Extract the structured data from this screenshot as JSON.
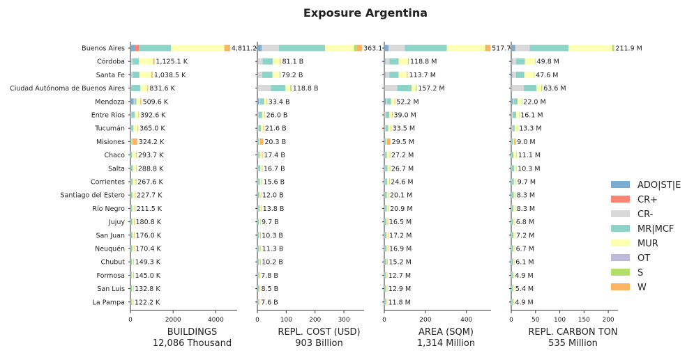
{
  "title": "Exposure Argentina",
  "legend": [
    {
      "key": "ADO|ST|E",
      "color": "#7bacd2"
    },
    {
      "key": "CR+",
      "color": "#fb8572"
    },
    {
      "key": "CR-",
      "color": "#d9d9d9"
    },
    {
      "key": "MR|MCF",
      "color": "#8dd3c7"
    },
    {
      "key": "MUR",
      "color": "#fdffb3"
    },
    {
      "key": "OT",
      "color": "#bebada"
    },
    {
      "key": "S",
      "color": "#b3de69"
    },
    {
      "key": "W",
      "color": "#fdb462"
    }
  ],
  "chart_data": {
    "type": "bar",
    "orientation": "horizontal-stacked",
    "categories": [
      "Buenos Aires",
      "Córdoba",
      "Santa Fe",
      "Ciudad Autónoma de Buenos Aires",
      "Mendoza",
      "Entre Ríos",
      "Tucumán",
      "Misiones",
      "Chaco",
      "Salta",
      "Corrientes",
      "Santiago del Estero",
      "Río Negro",
      "Jujuy",
      "San Juan",
      "Neuquén",
      "Chubut",
      "Formosa",
      "San Luis",
      "La Pampa"
    ],
    "panels": [
      {
        "xlabel": "BUILDINGS",
        "total": "12,086 Thousand",
        "xlim": [
          0,
          5000
        ],
        "ticks": [
          0,
          2000,
          4000
        ],
        "labels": [
          "4,811.2 K",
          "1,125.1 K",
          "1,038.5 K",
          "831.6 K",
          "509.6 K",
          "392.6 K",
          "365.0 K",
          "324.2 K",
          "293.7 K",
          "288.8 K",
          "267.6 K",
          "227.7 K",
          "211.5 K",
          "180.8 K",
          "176.0 K",
          "170.4 K",
          "149.3 K",
          "145.0 K",
          "132.8 K",
          "122.2 K"
        ],
        "stacks": [
          [
            200,
            200,
            0,
            1500,
            2500,
            0,
            0,
            270
          ],
          [
            40,
            0,
            60,
            300,
            660,
            0,
            20,
            45
          ],
          [
            40,
            0,
            60,
            320,
            560,
            0,
            20,
            40
          ],
          [
            30,
            0,
            20,
            410,
            330,
            0,
            20,
            20
          ],
          [
            150,
            0,
            50,
            80,
            180,
            0,
            20,
            30
          ],
          [
            20,
            0,
            30,
            150,
            170,
            0,
            10,
            15
          ],
          [
            20,
            0,
            30,
            90,
            200,
            0,
            10,
            15
          ],
          [
            10,
            0,
            10,
            30,
            30,
            0,
            10,
            230
          ],
          [
            10,
            0,
            20,
            40,
            200,
            0,
            10,
            15
          ],
          [
            10,
            0,
            20,
            80,
            160,
            0,
            10,
            10
          ],
          [
            10,
            0,
            20,
            70,
            150,
            0,
            10,
            10
          ],
          [
            10,
            0,
            10,
            70,
            120,
            0,
            10,
            10
          ],
          [
            10,
            0,
            20,
            50,
            120,
            0,
            5,
            10
          ],
          [
            10,
            0,
            20,
            60,
            80,
            0,
            5,
            5
          ],
          [
            10,
            0,
            10,
            70,
            80,
            0,
            5,
            5
          ],
          [
            10,
            0,
            20,
            60,
            70,
            0,
            5,
            5
          ],
          [
            10,
            0,
            10,
            50,
            70,
            0,
            5,
            5
          ],
          [
            10,
            0,
            10,
            40,
            80,
            0,
            5,
            5
          ],
          [
            10,
            0,
            10,
            50,
            55,
            0,
            5,
            5
          ],
          [
            10,
            0,
            10,
            40,
            55,
            0,
            5,
            5
          ]
        ]
      },
      {
        "xlabel": "REPL. COST (USD)",
        "total": "903 Billion",
        "xlim": [
          0,
          370
        ],
        "ticks": [
          0,
          100,
          200,
          300
        ],
        "labels": [
          "363.1 B",
          "81.1 B",
          "79.2 B",
          "118.8 B",
          "33.4 B",
          "26.0 B",
          "21.6 B",
          "20.3 B",
          "17.4 B",
          "16.7 B",
          "15.6 B",
          "12.0 B",
          "13.8 B",
          "9.7 B",
          "10.3 B",
          "11.3 B",
          "10.2 B",
          "7.8 B",
          "8.5 B",
          "7.6 B"
        ],
        "stacks": [
          [
            15,
            0,
            60,
            160,
            100,
            0,
            10,
            18
          ],
          [
            3,
            0,
            15,
            35,
            25,
            0,
            1,
            2
          ],
          [
            3,
            0,
            14,
            35,
            25,
            0,
            1,
            1
          ],
          [
            2,
            0,
            45,
            50,
            17,
            0,
            3,
            1
          ],
          [
            5,
            0,
            3,
            15,
            9,
            0,
            1,
            0.4
          ],
          [
            1,
            0,
            3,
            12,
            9,
            0,
            0.5,
            0.5
          ],
          [
            1,
            0,
            3,
            8,
            9,
            0,
            0.3,
            0.3
          ],
          [
            1,
            0,
            1,
            3,
            3,
            0,
            0.3,
            12
          ],
          [
            1,
            0,
            2,
            5,
            8,
            0,
            1,
            0.4
          ],
          [
            1,
            0,
            2,
            7,
            6,
            0,
            0.4,
            0.3
          ],
          [
            1,
            0,
            2,
            6,
            6,
            0,
            0.3,
            0.3
          ],
          [
            1,
            0,
            1,
            5,
            4.5,
            0,
            0.3,
            0.2
          ],
          [
            1,
            0,
            2,
            5,
            5.3,
            0,
            0.3,
            0.2
          ],
          [
            0.5,
            0,
            1,
            4,
            4,
            0,
            0.1,
            0.1
          ],
          [
            0.5,
            0,
            1,
            5,
            3.5,
            0,
            0.2,
            0.1
          ],
          [
            0.5,
            0,
            1.5,
            5,
            4,
            0,
            0.2,
            0.1
          ],
          [
            0.5,
            0,
            1,
            5,
            3.5,
            0,
            0.1,
            0.1
          ],
          [
            0.5,
            0,
            1,
            3,
            3,
            0,
            0.2,
            0.1
          ],
          [
            0.5,
            0,
            1,
            3.5,
            3.3,
            0,
            0.1,
            0.1
          ],
          [
            0.5,
            0,
            1,
            3,
            3,
            0,
            0,
            0.1
          ]
        ]
      },
      {
        "xlabel": "AREA (SQM)",
        "total": "1,314 Million",
        "xlim": [
          0,
          520
        ],
        "ticks": [
          0,
          200,
          400
        ],
        "labels": [
          "517.7 M",
          "118.8 M",
          "113.7 M",
          "157.2 M",
          "52.2 M",
          "39.0 M",
          "33.5 M",
          "29.5 M",
          "27.2 M",
          "26.7 M",
          "24.6 M",
          "20.1 M",
          "20.9 M",
          "16.5 M",
          "17.2 M",
          "16.9 M",
          "15.2 M",
          "12.7 M",
          "12.9 M",
          "11.8 M"
        ],
        "stacks": [
          [
            20,
            0,
            80,
            205,
            185,
            0,
            5,
            22
          ],
          [
            5,
            0,
            20,
            45,
            45,
            0,
            2,
            2
          ],
          [
            5,
            0,
            20,
            45,
            40,
            0,
            2,
            2
          ],
          [
            3,
            0,
            60,
            70,
            20,
            0,
            3,
            1
          ],
          [
            8,
            0,
            5,
            20,
            17,
            0,
            1,
            1
          ],
          [
            2,
            0,
            5,
            18,
            13,
            0,
            0.5,
            0.5
          ],
          [
            2,
            0,
            5,
            12,
            13,
            0,
            0.5,
            0.5
          ],
          [
            1,
            0,
            2,
            5,
            4,
            0,
            0.5,
            17
          ],
          [
            1,
            0,
            3,
            8,
            14,
            0,
            0.5,
            0.5
          ],
          [
            1,
            0,
            3,
            12,
            10,
            0,
            0.4,
            0.3
          ],
          [
            1,
            0,
            3,
            10,
            10,
            0,
            0.3,
            0.3
          ],
          [
            1,
            0,
            2,
            9,
            7.5,
            0,
            0.3,
            0.3
          ],
          [
            1,
            0,
            3,
            8,
            8.5,
            0,
            0.2,
            0.2
          ],
          [
            1,
            0,
            2,
            7,
            6,
            0,
            0.3,
            0.2
          ],
          [
            1,
            0,
            2,
            8,
            6,
            0,
            0.1,
            0.1
          ],
          [
            1,
            0,
            2,
            8,
            5.5,
            0,
            0.2,
            0.2
          ],
          [
            1,
            0,
            2,
            7,
            5,
            0,
            0.1,
            0.1
          ],
          [
            0.5,
            0,
            1.5,
            5,
            5.5,
            0,
            0.1,
            0.1
          ],
          [
            0.5,
            0,
            1.5,
            5.5,
            5.2,
            0,
            0.1,
            0.1
          ],
          [
            0.5,
            0,
            1.5,
            5,
            4.6,
            0,
            0.1,
            0.1
          ]
        ]
      },
      {
        "xlabel": "REPL. CARBON TON",
        "total": "535 Million",
        "xlim": [
          0,
          220
        ],
        "ticks": [
          0,
          50,
          100,
          150,
          200
        ],
        "labels": [
          "211.9 M",
          "49.8 M",
          "47.6 M",
          "63.6 M",
          "22.0 M",
          "16.1 M",
          "13.3 M",
          "9.0 M",
          "11.1 M",
          "10.3 M",
          "9.7 M",
          "8.3 M",
          "8.3 M",
          "6.8 M",
          "7.2 M",
          "6.7 M",
          "6.1 M",
          "4.9 M",
          "5.4 M",
          "4.9 M"
        ],
        "stacks": [
          [
            8,
            0,
            30,
            80,
            90,
            0,
            4,
            0
          ],
          [
            2,
            0,
            8,
            18,
            21,
            0,
            0.8,
            0
          ],
          [
            2,
            0,
            8,
            17,
            20,
            0,
            0.6,
            0
          ],
          [
            1,
            0,
            25,
            26,
            10,
            0,
            1.6,
            0
          ],
          [
            3,
            0,
            2,
            8,
            8.5,
            0,
            0.5,
            0
          ],
          [
            1,
            0,
            2,
            7,
            6,
            0,
            0.1,
            0
          ],
          [
            1,
            0,
            2,
            4,
            6,
            0,
            0.3,
            0
          ],
          [
            0.5,
            0,
            1,
            2,
            2,
            0,
            0.5,
            3
          ],
          [
            0.5,
            0,
            1,
            3,
            6,
            0,
            0.6,
            0
          ],
          [
            0.5,
            0,
            1,
            4.5,
            4,
            0,
            0.3,
            0
          ],
          [
            0.5,
            0,
            1,
            4,
            4,
            0,
            0.2,
            0
          ],
          [
            0.5,
            0,
            1,
            3.5,
            3.2,
            0,
            0.1,
            0
          ],
          [
            0.5,
            0,
            1,
            3.2,
            3.5,
            0,
            0.1,
            0
          ],
          [
            0.4,
            0,
            0.8,
            2.8,
            2.7,
            0,
            0.1,
            0
          ],
          [
            0.4,
            0,
            0.8,
            3.2,
            2.7,
            0,
            0.1,
            0
          ],
          [
            0.4,
            0,
            0.8,
            3,
            2.4,
            0,
            0.1,
            0
          ],
          [
            0.4,
            0,
            0.7,
            2.8,
            2.1,
            0,
            0.1,
            0
          ],
          [
            0.3,
            0,
            0.6,
            2,
            1.9,
            0,
            0.1,
            0
          ],
          [
            0.3,
            0,
            0.6,
            2.3,
            2.1,
            0,
            0.1,
            0
          ],
          [
            0.3,
            0,
            0.6,
            2,
            1.9,
            0,
            0.1,
            0
          ]
        ]
      }
    ]
  }
}
